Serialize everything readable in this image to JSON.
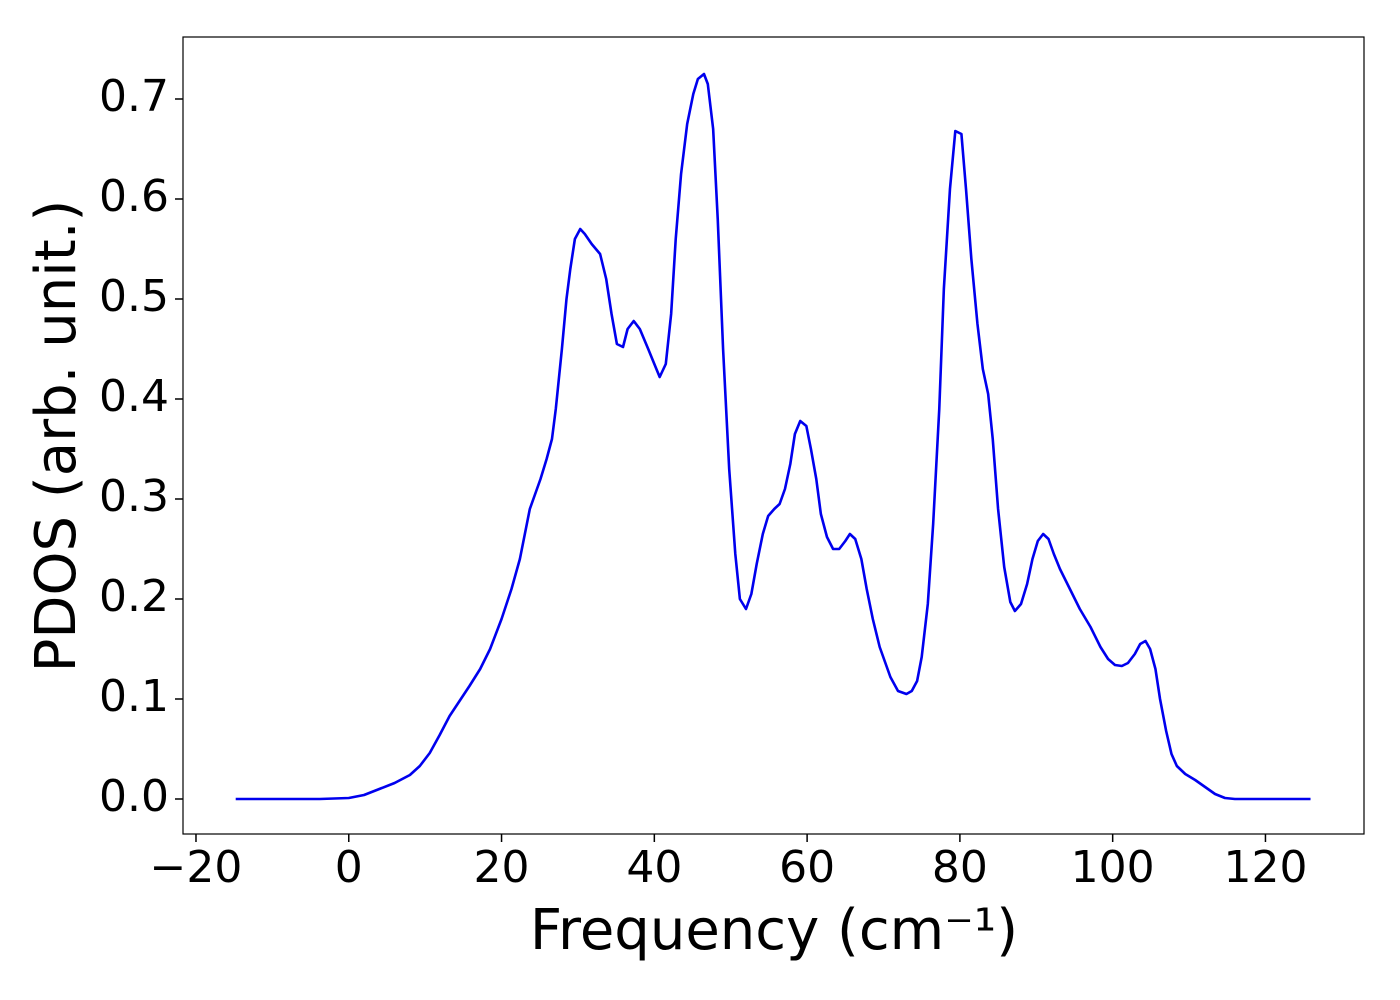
{
  "chart_data": {
    "type": "line",
    "xlabel": "Frequency (cm⁻¹)",
    "ylabel": "PDOS (arb. unit.)",
    "x": [
      -14.8,
      -3.8,
      0,
      2,
      4,
      6,
      8,
      9.3,
      10.6,
      11.9,
      13.2,
      14.5,
      15.8,
      17.2,
      18.5,
      20,
      21.3,
      22.4,
      23.7,
      24.4,
      25.1,
      25.9,
      26.6,
      27.1,
      27.9,
      28.5,
      29.0,
      29.6,
      30.3,
      30.9,
      31.8,
      32.9,
      33.7,
      34.4,
      35.1,
      35.9,
      36.5,
      37.3,
      38.1,
      39.2,
      40.0,
      40.7,
      41.5,
      42.2,
      42.8,
      43.5,
      44.3,
      45.1,
      45.7,
      46.5,
      47.0,
      47.7,
      48.3,
      49.0,
      49.8,
      50.6,
      51.2,
      52.0,
      52.7,
      53.4,
      54.2,
      54.9,
      55.7,
      56.4,
      57.1,
      57.8,
      58.4,
      59.1,
      59.9,
      60.5,
      61.2,
      61.8,
      62.6,
      63.4,
      64.2,
      65.0,
      65.6,
      66.3,
      67.1,
      67.8,
      68.6,
      69.5,
      70.9,
      71.9,
      73.0,
      73.7,
      74.4,
      75.0,
      75.8,
      76.5,
      77.3,
      77.9,
      78.7,
      79.4,
      80.2,
      80.8,
      81.5,
      82.3,
      83.0,
      83.7,
      84.3,
      85.0,
      85.8,
      86.6,
      87.2,
      88.0,
      88.8,
      89.5,
      90.2,
      90.9,
      91.6,
      92.3,
      93.1,
      94.4,
      95.7,
      97.1,
      98.4,
      99.4,
      100.3,
      101.2,
      102.0,
      102.9,
      103.6,
      104.3,
      104.9,
      105.6,
      106.2,
      107.0,
      107.7,
      108.4,
      109.5,
      110.8,
      112.1,
      113.4,
      114.7,
      116.0,
      125.9
    ],
    "series": [
      {
        "name": "PDOS",
        "color": "#0000ee",
        "values": [
          0,
          0,
          0.001,
          0.004,
          0.01,
          0.016,
          0.024,
          0.033,
          0.046,
          0.064,
          0.083,
          0.098,
          0.113,
          0.13,
          0.15,
          0.18,
          0.21,
          0.24,
          0.29,
          0.305,
          0.32,
          0.34,
          0.36,
          0.39,
          0.45,
          0.5,
          0.53,
          0.56,
          0.57,
          0.565,
          0.555,
          0.545,
          0.52,
          0.485,
          0.455,
          0.452,
          0.47,
          0.478,
          0.47,
          0.45,
          0.435,
          0.422,
          0.435,
          0.485,
          0.56,
          0.625,
          0.675,
          0.705,
          0.72,
          0.725,
          0.715,
          0.67,
          0.58,
          0.45,
          0.33,
          0.245,
          0.2,
          0.19,
          0.205,
          0.235,
          0.265,
          0.283,
          0.29,
          0.295,
          0.31,
          0.335,
          0.365,
          0.378,
          0.373,
          0.35,
          0.32,
          0.285,
          0.262,
          0.25,
          0.25,
          0.258,
          0.265,
          0.26,
          0.24,
          0.21,
          0.18,
          0.152,
          0.122,
          0.108,
          0.105,
          0.108,
          0.118,
          0.142,
          0.195,
          0.275,
          0.39,
          0.51,
          0.61,
          0.668,
          0.665,
          0.61,
          0.54,
          0.475,
          0.43,
          0.405,
          0.36,
          0.29,
          0.232,
          0.197,
          0.188,
          0.195,
          0.215,
          0.24,
          0.258,
          0.265,
          0.26,
          0.245,
          0.23,
          0.21,
          0.19,
          0.172,
          0.152,
          0.14,
          0.134,
          0.133,
          0.136,
          0.145,
          0.155,
          0.158,
          0.15,
          0.13,
          0.1,
          0.068,
          0.045,
          0.033,
          0.025,
          0.019,
          0.012,
          0.005,
          0.001,
          0,
          0
        ]
      }
    ],
    "xlim": [
      -21.7,
      132.9
    ],
    "ylim": [
      -0.035,
      0.762
    ],
    "xticks": [
      {
        "value": -20,
        "label": "−20"
      },
      0,
      20,
      40,
      60,
      80,
      100,
      120
    ],
    "yticks": [
      {
        "value": 0,
        "label": "0.0"
      },
      0.1,
      0.2,
      0.3,
      0.4,
      0.5,
      0.6,
      0.7
    ],
    "grid": false
  }
}
